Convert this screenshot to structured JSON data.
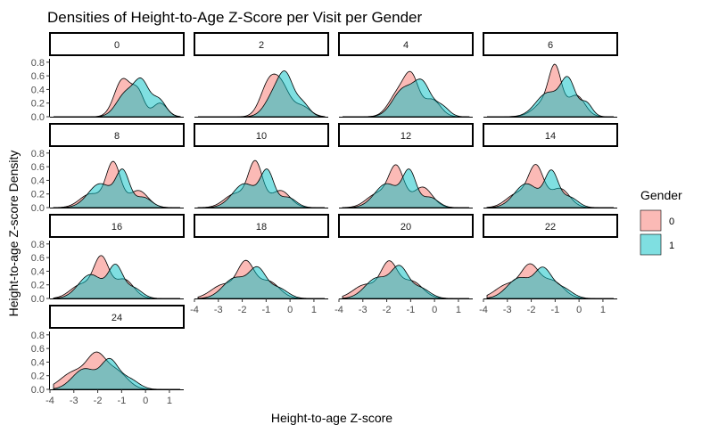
{
  "chart_data": {
    "type": "area",
    "title": "Densities of Height-to-Age Z-Score per Visit per Gender",
    "xlabel": "Height-to-age Z-score",
    "ylabel": "Height-to-age Z-score Density",
    "xlim": [
      -4,
      1.6
    ],
    "ylim": [
      0,
      0.85
    ],
    "x_ticks": [
      -4,
      -3,
      -2,
      -1,
      0,
      1
    ],
    "y_ticks": [
      0.0,
      0.2,
      0.4,
      0.6,
      0.8
    ],
    "x_tick_labels": [
      "-4",
      "-3",
      "-2",
      "-1",
      "0",
      "1"
    ],
    "y_tick_labels": [
      "0.0",
      "0.2",
      "0.4",
      "0.6",
      "0.8"
    ],
    "grid": false,
    "legend": {
      "title": "Gender",
      "position": "right",
      "entries": [
        {
          "label": "0",
          "color": "#F8766D"
        },
        {
          "label": "1",
          "color": "#00BFC4"
        }
      ]
    },
    "fill_opacity": 0.5,
    "panels": [
      {
        "label": "0",
        "series": [
          {
            "name": "0",
            "peaks": [
              [
                -0.95,
                0.55,
                0.35
              ],
              [
                -0.3,
                0.32,
                0.25
              ],
              [
                0.6,
                0.2,
                0.3
              ]
            ]
          },
          {
            "name": "1",
            "peaks": [
              [
                -0.8,
                0.35,
                0.4
              ],
              [
                -0.15,
                0.45,
                0.3
              ],
              [
                0.55,
                0.25,
                0.3
              ]
            ]
          }
        ]
      },
      {
        "label": "2",
        "series": [
          {
            "name": "0",
            "peaks": [
              [
                -0.9,
                0.45,
                0.35
              ],
              [
                -0.35,
                0.4,
                0.35
              ],
              [
                0.5,
                0.15,
                0.35
              ]
            ]
          },
          {
            "name": "1",
            "peaks": [
              [
                -0.6,
                0.35,
                0.4
              ],
              [
                -0.15,
                0.45,
                0.3
              ],
              [
                0.5,
                0.2,
                0.3
              ]
            ]
          }
        ]
      },
      {
        "label": "4",
        "series": [
          {
            "name": "0",
            "peaks": [
              [
                -1.5,
                0.35,
                0.4
              ],
              [
                -0.95,
                0.5,
                0.3
              ],
              [
                -0.1,
                0.25,
                0.35
              ]
            ]
          },
          {
            "name": "1",
            "peaks": [
              [
                -1.3,
                0.4,
                0.45
              ],
              [
                -0.5,
                0.45,
                0.35
              ],
              [
                0.3,
                0.15,
                0.3
              ]
            ]
          }
        ]
      },
      {
        "label": "6",
        "series": [
          {
            "name": "0",
            "peaks": [
              [
                -1.3,
                0.25,
                0.5
              ],
              [
                -1.0,
                0.55,
                0.25
              ],
              [
                -0.1,
                0.3,
                0.35
              ]
            ]
          },
          {
            "name": "1",
            "peaks": [
              [
                -1.3,
                0.35,
                0.5
              ],
              [
                -0.45,
                0.5,
                0.3
              ],
              [
                0.3,
                0.2,
                0.25
              ]
            ]
          }
        ]
      },
      {
        "label": "8",
        "series": [
          {
            "name": "0",
            "peaks": [
              [
                -2.3,
                0.2,
                0.45
              ],
              [
                -1.35,
                0.65,
                0.3
              ],
              [
                -0.3,
                0.25,
                0.4
              ]
            ]
          },
          {
            "name": "1",
            "peaks": [
              [
                -1.9,
                0.35,
                0.5
              ],
              [
                -0.95,
                0.5,
                0.28
              ],
              [
                -0.1,
                0.15,
                0.35
              ]
            ]
          }
        ]
      },
      {
        "label": "10",
        "series": [
          {
            "name": "0",
            "peaks": [
              [
                -2.3,
                0.2,
                0.45
              ],
              [
                -1.45,
                0.65,
                0.3
              ],
              [
                -0.4,
                0.25,
                0.4
              ]
            ]
          },
          {
            "name": "1",
            "peaks": [
              [
                -1.9,
                0.35,
                0.5
              ],
              [
                -0.95,
                0.5,
                0.28
              ],
              [
                -0.1,
                0.15,
                0.35
              ]
            ]
          }
        ]
      },
      {
        "label": "12",
        "series": [
          {
            "name": "0",
            "peaks": [
              [
                -2.4,
                0.2,
                0.45
              ],
              [
                -1.6,
                0.58,
                0.32
              ],
              [
                -0.5,
                0.3,
                0.4
              ]
            ]
          },
          {
            "name": "1",
            "peaks": [
              [
                -2.0,
                0.35,
                0.5
              ],
              [
                -1.05,
                0.5,
                0.28
              ],
              [
                -0.2,
                0.15,
                0.35
              ]
            ]
          }
        ]
      },
      {
        "label": "14",
        "series": [
          {
            "name": "0",
            "peaks": [
              [
                -2.6,
                0.2,
                0.45
              ],
              [
                -1.8,
                0.58,
                0.32
              ],
              [
                -0.8,
                0.28,
                0.4
              ]
            ]
          },
          {
            "name": "1",
            "peaks": [
              [
                -2.2,
                0.35,
                0.5
              ],
              [
                -1.15,
                0.5,
                0.28
              ],
              [
                -0.4,
                0.15,
                0.35
              ]
            ]
          }
        ]
      },
      {
        "label": "16",
        "series": [
          {
            "name": "0",
            "peaks": [
              [
                -2.7,
                0.2,
                0.45
              ],
              [
                -1.85,
                0.58,
                0.32
              ],
              [
                -0.9,
                0.28,
                0.4
              ]
            ]
          },
          {
            "name": "1",
            "peaks": [
              [
                -2.3,
                0.35,
                0.5
              ],
              [
                -1.25,
                0.45,
                0.3
              ],
              [
                -0.5,
                0.15,
                0.35
              ]
            ]
          }
        ]
      },
      {
        "label": "18",
        "series": [
          {
            "name": "0",
            "peaks": [
              [
                -2.8,
                0.2,
                0.5
              ],
              [
                -1.85,
                0.5,
                0.35
              ],
              [
                -0.9,
                0.25,
                0.45
              ]
            ]
          },
          {
            "name": "1",
            "peaks": [
              [
                -2.3,
                0.3,
                0.5
              ],
              [
                -1.35,
                0.4,
                0.35
              ],
              [
                -0.5,
                0.15,
                0.4
              ]
            ]
          }
        ]
      },
      {
        "label": "20",
        "series": [
          {
            "name": "0",
            "peaks": [
              [
                -2.9,
                0.2,
                0.5
              ],
              [
                -1.9,
                0.5,
                0.35
              ],
              [
                -0.95,
                0.25,
                0.45
              ]
            ]
          },
          {
            "name": "1",
            "peaks": [
              [
                -2.4,
                0.3,
                0.5
              ],
              [
                -1.45,
                0.42,
                0.35
              ],
              [
                -0.6,
                0.15,
                0.4
              ]
            ]
          }
        ]
      },
      {
        "label": "22",
        "series": [
          {
            "name": "0",
            "peaks": [
              [
                -3.0,
                0.2,
                0.5
              ],
              [
                -2.05,
                0.45,
                0.38
              ],
              [
                -1.1,
                0.25,
                0.45
              ]
            ]
          },
          {
            "name": "1",
            "peaks": [
              [
                -2.5,
                0.3,
                0.5
              ],
              [
                -1.5,
                0.4,
                0.35
              ],
              [
                -0.7,
                0.15,
                0.4
              ]
            ]
          }
        ]
      },
      {
        "label": "24",
        "series": [
          {
            "name": "0",
            "peaks": [
              [
                -3.0,
                0.25,
                0.55
              ],
              [
                -2.05,
                0.45,
                0.4
              ],
              [
                -1.2,
                0.25,
                0.45
              ]
            ]
          },
          {
            "name": "1",
            "peaks": [
              [
                -2.55,
                0.3,
                0.5
              ],
              [
                -1.5,
                0.4,
                0.35
              ],
              [
                -0.7,
                0.15,
                0.4
              ]
            ]
          }
        ]
      }
    ]
  }
}
